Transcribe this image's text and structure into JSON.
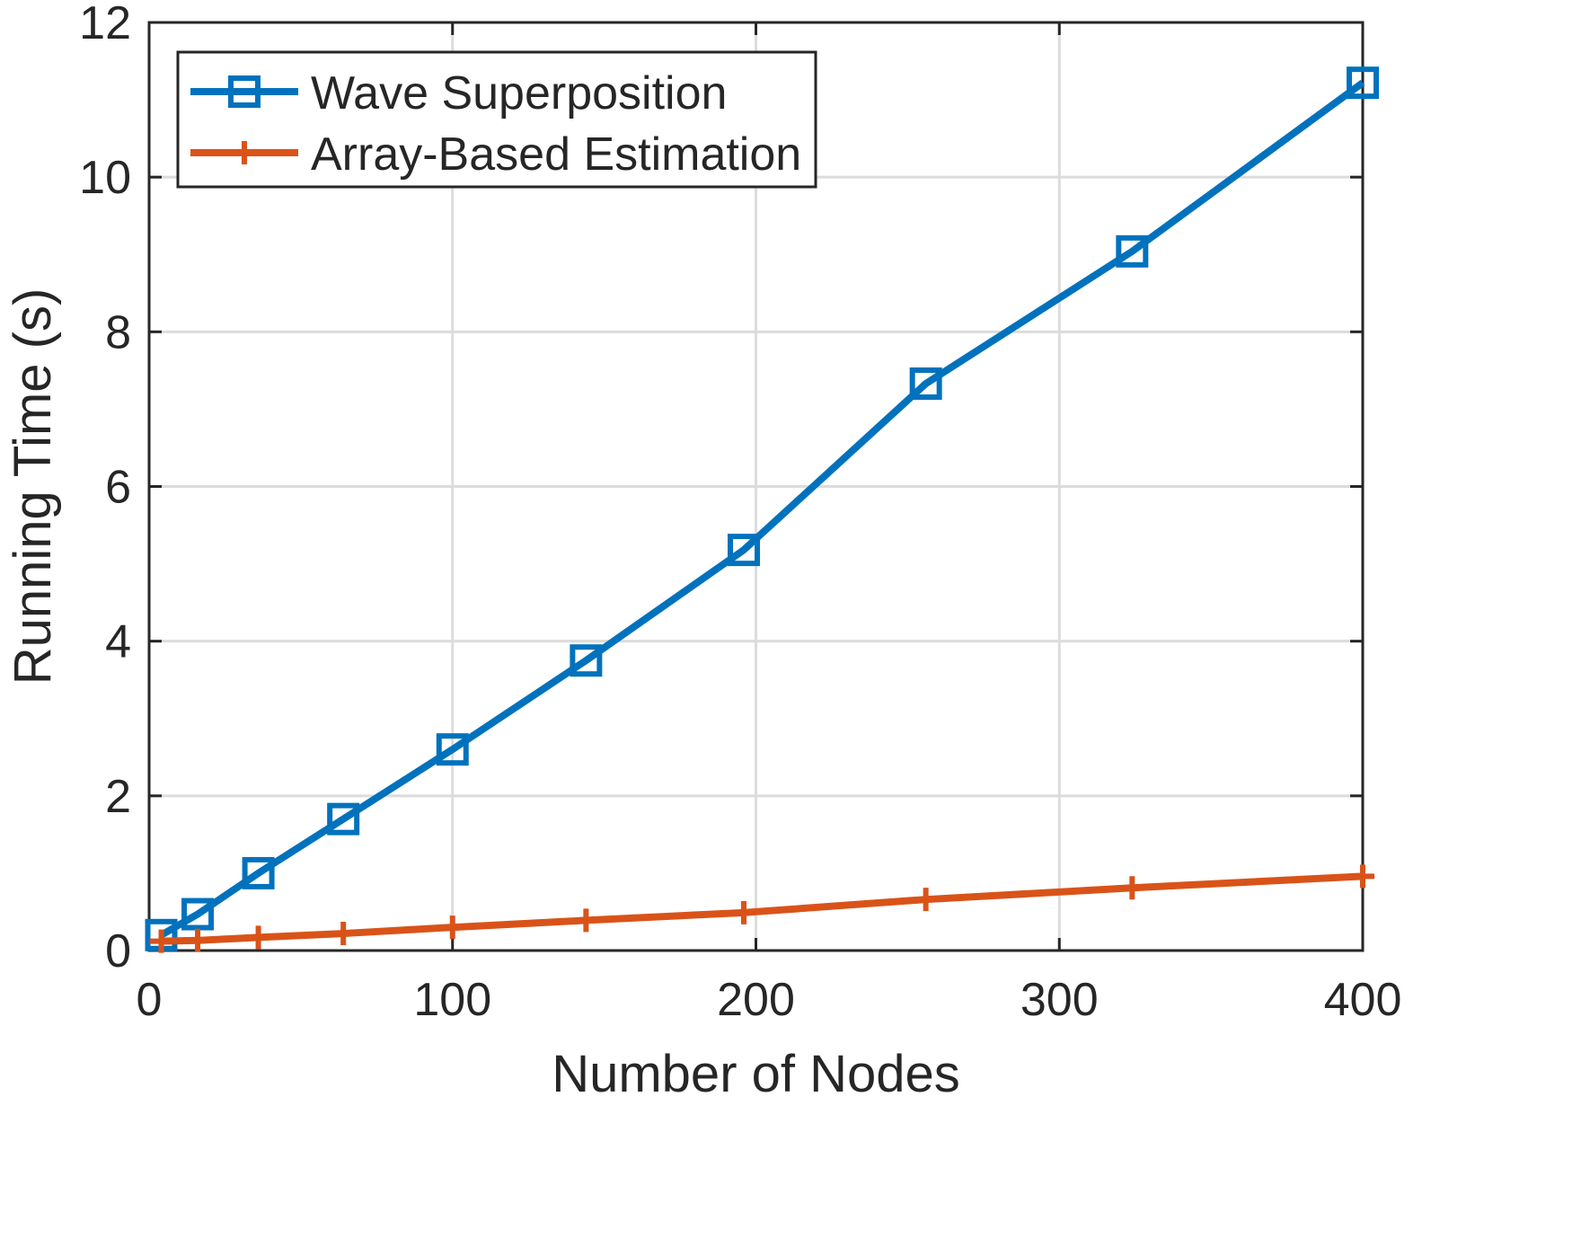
{
  "chart_data": {
    "type": "line",
    "title": "",
    "xlabel": "Number of Nodes",
    "ylabel": "Running Time (s)",
    "xlim": [
      0,
      400
    ],
    "ylim": [
      0,
      12
    ],
    "xticks": [
      0,
      100,
      200,
      300,
      400
    ],
    "yticks": [
      0,
      2,
      4,
      6,
      8,
      10,
      12
    ],
    "grid": true,
    "legend_position": "top-left",
    "series": [
      {
        "name": "Wave Superposition",
        "color": "#0072BD",
        "marker": "square",
        "x": [
          4,
          16,
          36,
          64,
          100,
          144,
          196,
          256,
          324,
          400
        ],
        "y": [
          0.2,
          0.47,
          1.0,
          1.7,
          2.6,
          3.75,
          5.18,
          7.33,
          9.04,
          11.22
        ]
      },
      {
        "name": "Array-Based Estimation",
        "color": "#D95319",
        "marker": "plus",
        "x": [
          4,
          16,
          36,
          64,
          100,
          144,
          196,
          256,
          324,
          400
        ],
        "y": [
          0.12,
          0.13,
          0.17,
          0.22,
          0.3,
          0.39,
          0.49,
          0.66,
          0.81,
          0.96
        ]
      }
    ]
  }
}
